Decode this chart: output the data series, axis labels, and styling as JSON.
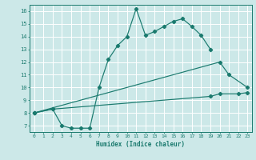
{
  "xlabel": "Humidex (Indice chaleur)",
  "background_color": "#cce8e8",
  "grid_color": "#ffffff",
  "line_color": "#1a7a6e",
  "xlim": [
    -0.5,
    23.5
  ],
  "ylim": [
    6.5,
    16.5
  ],
  "xticks": [
    0,
    1,
    2,
    3,
    4,
    5,
    6,
    7,
    8,
    9,
    10,
    11,
    12,
    13,
    14,
    15,
    16,
    17,
    18,
    19,
    20,
    21,
    22,
    23
  ],
  "yticks": [
    7,
    8,
    9,
    10,
    11,
    12,
    13,
    14,
    15,
    16
  ],
  "curve_x": [
    0,
    2,
    3,
    4,
    5,
    6,
    7,
    8,
    9,
    10,
    11,
    12,
    13,
    14,
    15,
    16,
    17,
    18,
    19
  ],
  "curve_y": [
    8.0,
    8.3,
    7.0,
    6.8,
    6.8,
    6.8,
    10.0,
    12.2,
    13.3,
    14.0,
    16.2,
    14.1,
    14.4,
    14.8,
    15.2,
    15.4,
    14.8,
    14.1,
    13.0
  ],
  "line2_x": [
    0,
    20,
    21,
    23
  ],
  "line2_y": [
    8.0,
    12.0,
    11.0,
    10.0
  ],
  "line1_x": [
    0,
    2,
    19,
    20,
    22,
    23
  ],
  "line1_y": [
    8.0,
    8.3,
    9.3,
    9.5,
    9.5,
    9.6
  ]
}
